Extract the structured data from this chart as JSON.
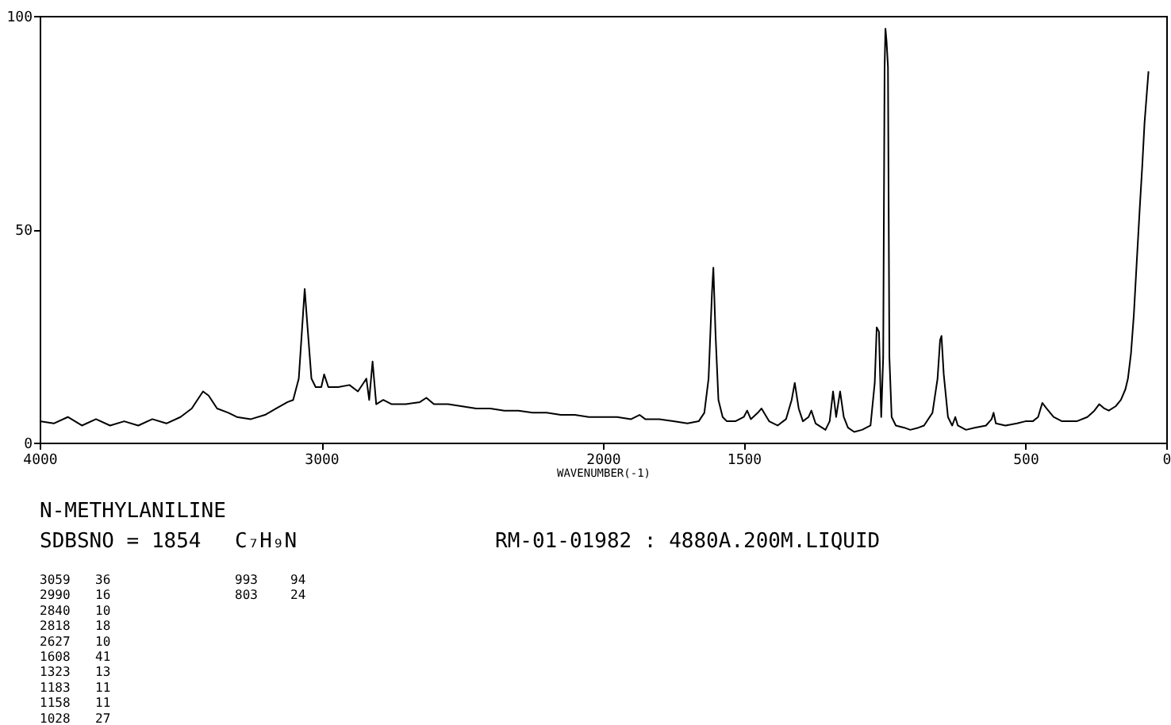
{
  "chart_data": {
    "type": "line",
    "title": "N-METHYLANILINE",
    "subtitle": "SDBSNO = 1854",
    "xlabel": "WAVENUMBER(-1)",
    "x": [
      4000,
      3950,
      3900,
      3850,
      3800,
      3750,
      3700,
      3650,
      3600,
      3550,
      3500,
      3460,
      3420,
      3400,
      3370,
      3330,
      3300,
      3250,
      3200,
      3160,
      3120,
      3100,
      3080,
      3065,
      3059,
      3050,
      3035,
      3020,
      3000,
      2990,
      2975,
      2940,
      2900,
      2870,
      2850,
      2840,
      2830,
      2818,
      2805,
      2780,
      2750,
      2700,
      2650,
      2627,
      2600,
      2550,
      2500,
      2450,
      2400,
      2350,
      2300,
      2250,
      2200,
      2150,
      2100,
      2050,
      2000,
      1950,
      1900,
      1870,
      1850,
      1800,
      1750,
      1700,
      1660,
      1640,
      1625,
      1613,
      1608,
      1600,
      1590,
      1575,
      1560,
      1530,
      1500,
      1488,
      1475,
      1450,
      1437,
      1410,
      1380,
      1350,
      1330,
      1319,
      1305,
      1290,
      1270,
      1260,
      1245,
      1210,
      1195,
      1183,
      1172,
      1158,
      1145,
      1130,
      1108,
      1080,
      1050,
      1035,
      1028,
      1020,
      1012,
      1005,
      1000,
      997,
      993,
      988,
      983,
      975,
      960,
      930,
      909,
      880,
      860,
      830,
      812,
      803,
      798,
      790,
      775,
      760,
      749,
      740,
      711,
      680,
      640,
      620,
      613,
      605,
      571,
      530,
      500,
      474,
      455,
      440,
      425,
      400,
      370,
      318,
      280,
      255,
      238,
      220,
      204,
      180,
      161,
      145,
      136,
      125,
      115,
      105,
      94,
      85,
      77,
      70,
      63
    ],
    "series": [
      {
        "color": "#000000",
        "values": [
          5,
          4.5,
          6,
          4,
          5.5,
          4,
          5,
          4,
          5.5,
          4.5,
          6,
          8,
          12,
          11,
          8,
          7,
          6,
          5.5,
          6.5,
          8,
          9.5,
          10,
          15,
          30,
          36,
          28,
          15,
          13,
          13,
          16,
          13,
          13,
          13.5,
          12,
          14,
          15,
          10,
          19,
          9,
          10,
          9,
          9,
          9.5,
          10.5,
          9,
          9,
          8.5,
          8,
          8,
          7.5,
          7.5,
          7,
          7,
          6.5,
          6.5,
          6,
          6,
          6,
          5.5,
          6.5,
          5.5,
          5.5,
          5,
          4.5,
          5,
          7,
          15,
          35,
          41,
          25,
          10,
          6,
          5,
          5,
          6,
          7.5,
          5.5,
          7,
          8,
          5,
          4,
          5.5,
          10,
          14,
          8,
          5,
          6,
          7.5,
          4.5,
          3,
          5,
          12,
          6,
          12,
          6,
          3.5,
          2.5,
          3,
          4,
          14,
          27,
          26,
          6,
          20,
          88,
          97,
          94,
          88,
          20,
          6,
          4,
          3.5,
          3,
          3.5,
          4,
          7,
          15,
          24,
          25,
          16,
          6,
          4,
          6,
          4,
          3,
          3.5,
          4,
          5.5,
          7,
          4.5,
          4,
          4.5,
          5,
          5,
          6,
          9.3,
          8,
          6,
          5,
          5,
          6,
          7.5,
          9,
          8,
          7.5,
          8.5,
          10,
          12.5,
          15,
          21,
          30,
          42,
          55,
          65,
          75,
          81,
          87
        ]
      }
    ],
    "xlim": [
      4000,
      0
    ],
    "xticks": [
      4000,
      3000,
      2000,
      1500,
      500,
      0
    ],
    "ylim": [
      0,
      100
    ],
    "yticks": [
      0,
      50,
      100
    ],
    "grid": false,
    "line_style": "solid",
    "marker": "none",
    "annotations": [
      "C₇H₉N",
      "RM-01-01982 : 4880A.200M.LIQUID",
      "3059 36",
      "2990 16",
      "2840 10",
      "2818 18",
      "2627 10",
      "1608 41",
      "1323 13",
      "1183 11",
      "1158 11",
      "1028 27",
      "993 94",
      "803 24"
    ]
  }
}
